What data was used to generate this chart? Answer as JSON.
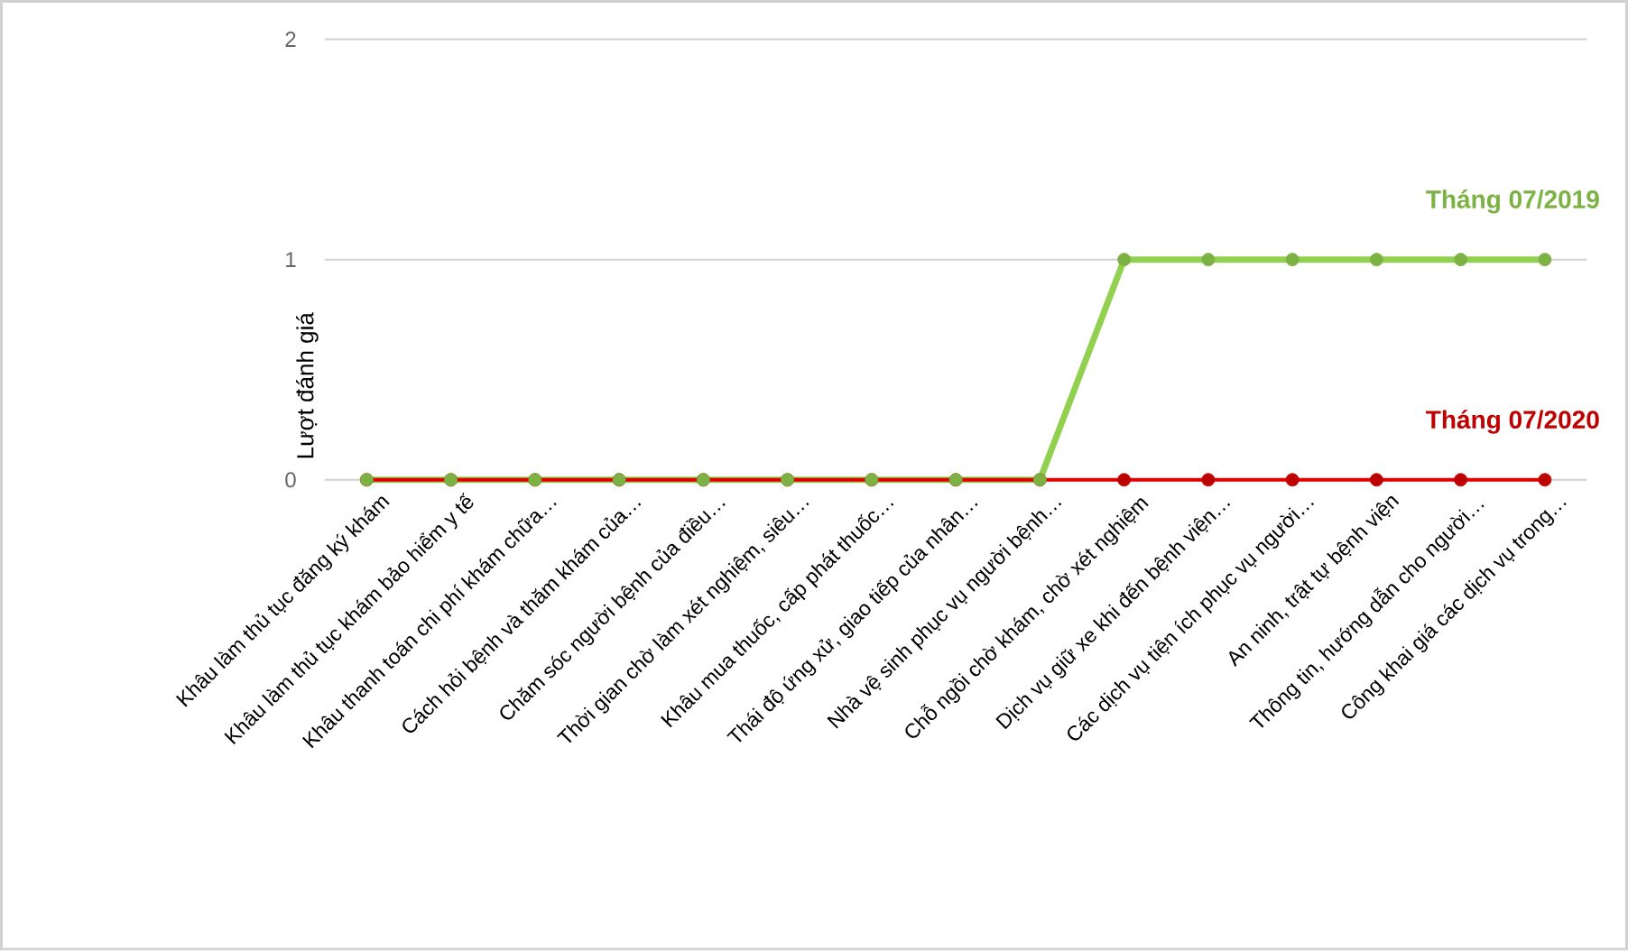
{
  "chart_data": {
    "type": "line",
    "ylabel": "Lượt đánh giá",
    "categories": [
      "Khâu làm thủ tục đăng ký khám",
      "Khâu làm thủ tục khám bảo hiểm y tế",
      "Khâu thanh toán chi phí khám chữa…",
      "Cách hỏi bệnh và thăm khám của…",
      "Chăm sóc người bệnh của điều…",
      "Thời gian chờ làm xét nghiệm, siêu…",
      "Khâu mua thuốc, cấp phát thuốc…",
      "Thái độ ứng xử, giao tiếp của nhân…",
      "Nhà vệ sinh phục vụ người bệnh…",
      "Chỗ ngồi chờ khám, chờ xét nghiệm",
      "Dịch vụ giữ xe khi đến bệnh viện…",
      "Các dịch vụ tiện ích phục vụ người…",
      "An ninh, trật tự bệnh viện",
      "Thông tin, hướng dẫn cho người…",
      "Công khai giá các dịch vụ trong…"
    ],
    "series": [
      {
        "name": "Tháng 07/2020",
        "color": "#e00000",
        "values": [
          0,
          0,
          0,
          0,
          0,
          0,
          0,
          0,
          0,
          0,
          0,
          0,
          0,
          0,
          0
        ]
      },
      {
        "name": "Tháng 07/2019",
        "color": "#92d050",
        "values": [
          0,
          0,
          0,
          0,
          0,
          0,
          0,
          0,
          0,
          1,
          1,
          1,
          1,
          1,
          1
        ]
      }
    ],
    "ylim": [
      0,
      2
    ],
    "yticks": [
      0,
      1,
      2
    ],
    "grid": "y",
    "marker": "circle",
    "line_style": "solid"
  }
}
